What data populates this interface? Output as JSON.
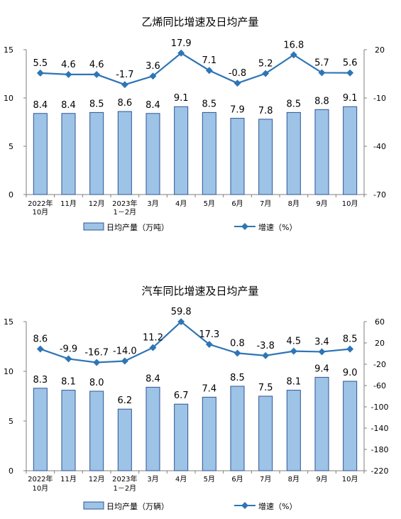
{
  "chart_data": [
    {
      "type": "bar+line",
      "title": "乙烯同比增速及日均产量",
      "categories": [
        "2022年\n10月",
        "11月",
        "12月",
        "2023年\n1－2月",
        "3月",
        "4月",
        "5月",
        "6月",
        "7月",
        "8月",
        "9月",
        "10月"
      ],
      "series": [
        {
          "name": "日均产量（万吨）",
          "type": "bar",
          "axis": "left",
          "values": [
            8.4,
            8.4,
            8.5,
            8.6,
            8.4,
            9.1,
            8.5,
            7.9,
            7.8,
            8.5,
            8.8,
            9.1
          ]
        },
        {
          "name": "增速（%）",
          "type": "line",
          "axis": "right",
          "values": [
            5.5,
            4.6,
            4.6,
            -1.7,
            3.6,
            17.9,
            7.1,
            -0.8,
            5.2,
            16.8,
            5.7,
            5.6
          ]
        }
      ],
      "ylim_left": [
        0,
        15
      ],
      "yticks_left": [
        0,
        5,
        10,
        15
      ],
      "ylim_right": [
        -70,
        20
      ],
      "yticks_right": [
        -70,
        -40,
        -10,
        20
      ],
      "grid": false,
      "legend": "bottom",
      "colors": {
        "bar": "#9dc3e6",
        "bar_border": "#2f5597",
        "line": "#2e75b6"
      }
    },
    {
      "type": "bar+line",
      "title": "汽车同比增速及日均产量",
      "categories": [
        "2022年\n10月",
        "11月",
        "12月",
        "2023年\n1－2月",
        "3月",
        "4月",
        "5月",
        "6月",
        "7月",
        "8月",
        "9月",
        "10月"
      ],
      "series": [
        {
          "name": "日均产量（万辆）",
          "type": "bar",
          "axis": "left",
          "values": [
            8.3,
            8.1,
            8.0,
            6.2,
            8.4,
            6.7,
            7.4,
            8.5,
            7.5,
            8.1,
            9.4,
            9.0
          ]
        },
        {
          "name": "增速（%）",
          "type": "line",
          "axis": "right",
          "values": [
            8.6,
            -9.9,
            -16.7,
            -14.0,
            11.2,
            59.8,
            17.3,
            0.8,
            -3.8,
            4.5,
            3.4,
            8.5
          ]
        }
      ],
      "ylim_left": [
        0,
        15
      ],
      "yticks_left": [
        0,
        5,
        10,
        15
      ],
      "ylim_right": [
        -220,
        60
      ],
      "yticks_right": [
        -220,
        -180,
        -140,
        -100,
        -60,
        -20,
        20,
        60
      ],
      "grid": false,
      "legend": "bottom",
      "colors": {
        "bar": "#9dc3e6",
        "bar_border": "#2f5597",
        "line": "#2e75b6"
      }
    }
  ]
}
